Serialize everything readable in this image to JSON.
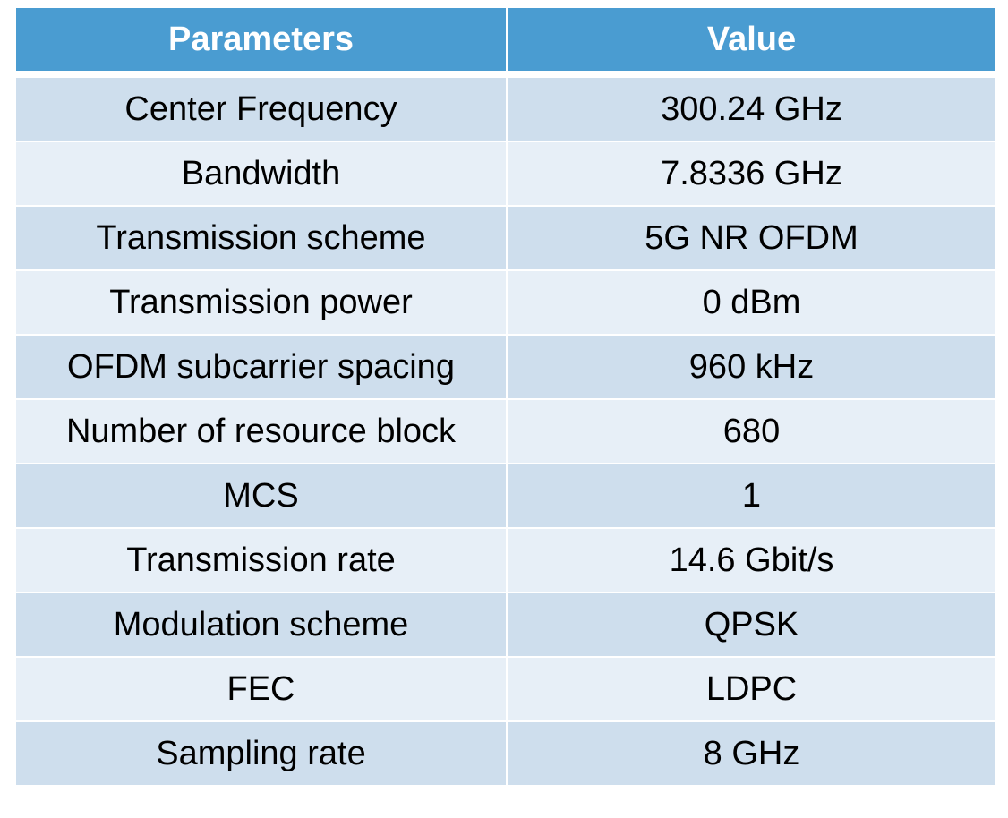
{
  "headers": {
    "parameters": "Parameters",
    "value": "Value"
  },
  "rows": [
    {
      "param": "Center Frequency",
      "value": "300.24 GHz"
    },
    {
      "param": "Bandwidth",
      "value": "7.8336 GHz"
    },
    {
      "param": "Transmission scheme",
      "value": "5G NR OFDM"
    },
    {
      "param": "Transmission power",
      "value": "0 dBm"
    },
    {
      "param": "OFDM subcarrier spacing",
      "value": "960 kHz"
    },
    {
      "param": "Number of resource block",
      "value": "680"
    },
    {
      "param": "MCS",
      "value": "1"
    },
    {
      "param": "Transmission rate",
      "value": "14.6 Gbit/s"
    },
    {
      "param": "Modulation scheme",
      "value": "QPSK"
    },
    {
      "param": "FEC",
      "value": "LDPC"
    },
    {
      "param": "Sampling rate",
      "value": "8 GHz"
    }
  ],
  "colors": {
    "header": "#4a9cd1",
    "row_odd": "#cedeed",
    "row_even": "#e7eff7"
  }
}
